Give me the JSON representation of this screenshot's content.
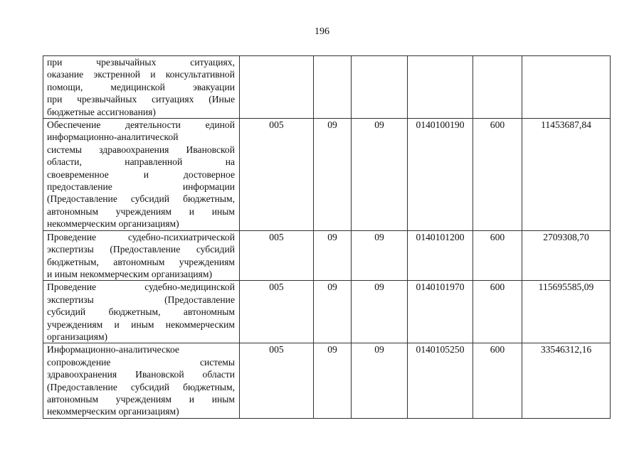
{
  "page_number": "196",
  "rows": [
    {
      "lines": [
        "при чрезвычайных ситуациях,",
        "оказание экстренной и консультативной",
        "помощи, медицинской эвакуации",
        "при чрезвычайных ситуациях (Иные",
        "бюджетные ассигнования)"
      ],
      "c1": "",
      "c2": "",
      "c3": "",
      "c4": "",
      "c5": "",
      "c6": ""
    },
    {
      "lines": [
        "Обеспечение деятельности единой",
        "информационно-аналитической",
        "системы здравоохранения Ивановской",
        "области, направленной на",
        "своевременное и достоверное",
        "предоставление информации",
        "(Предоставление субсидий бюджетным,",
        "автономным учреждениям и иным",
        "некоммерческим организациям)"
      ],
      "c1": "005",
      "c2": "09",
      "c3": "09",
      "c4": "0140100190",
      "c5": "600",
      "c6": "11453687,84"
    },
    {
      "lines": [
        "Проведение судебно-психиатрической",
        "экспертизы (Предоставление субсидий",
        "бюджетным, автономным учреждениям",
        "и иным некоммерческим организациям)"
      ],
      "c1": "005",
      "c2": "09",
      "c3": "09",
      "c4": "0140101200",
      "c5": "600",
      "c6": "2709308,70"
    },
    {
      "lines": [
        "Проведение судебно-медицинской",
        "экспертизы (Предоставление",
        "субсидий бюджетным, автономным",
        "учреждениям и иным некоммерческим",
        "организациям)"
      ],
      "c1": "005",
      "c2": "09",
      "c3": "09",
      "c4": "0140101970",
      "c5": "600",
      "c6": "115695585,09"
    },
    {
      "lines": [
        "Информационно-аналитическое",
        "сопровождение системы",
        "здравоохранения Ивановской области",
        "(Предоставление субсидий бюджетным,",
        "автономным учреждениям и иным",
        "некоммерческим организациям)"
      ],
      "c1": "005",
      "c2": "09",
      "c3": "09",
      "c4": "0140105250",
      "c5": "600",
      "c6": "33546312,16"
    }
  ]
}
